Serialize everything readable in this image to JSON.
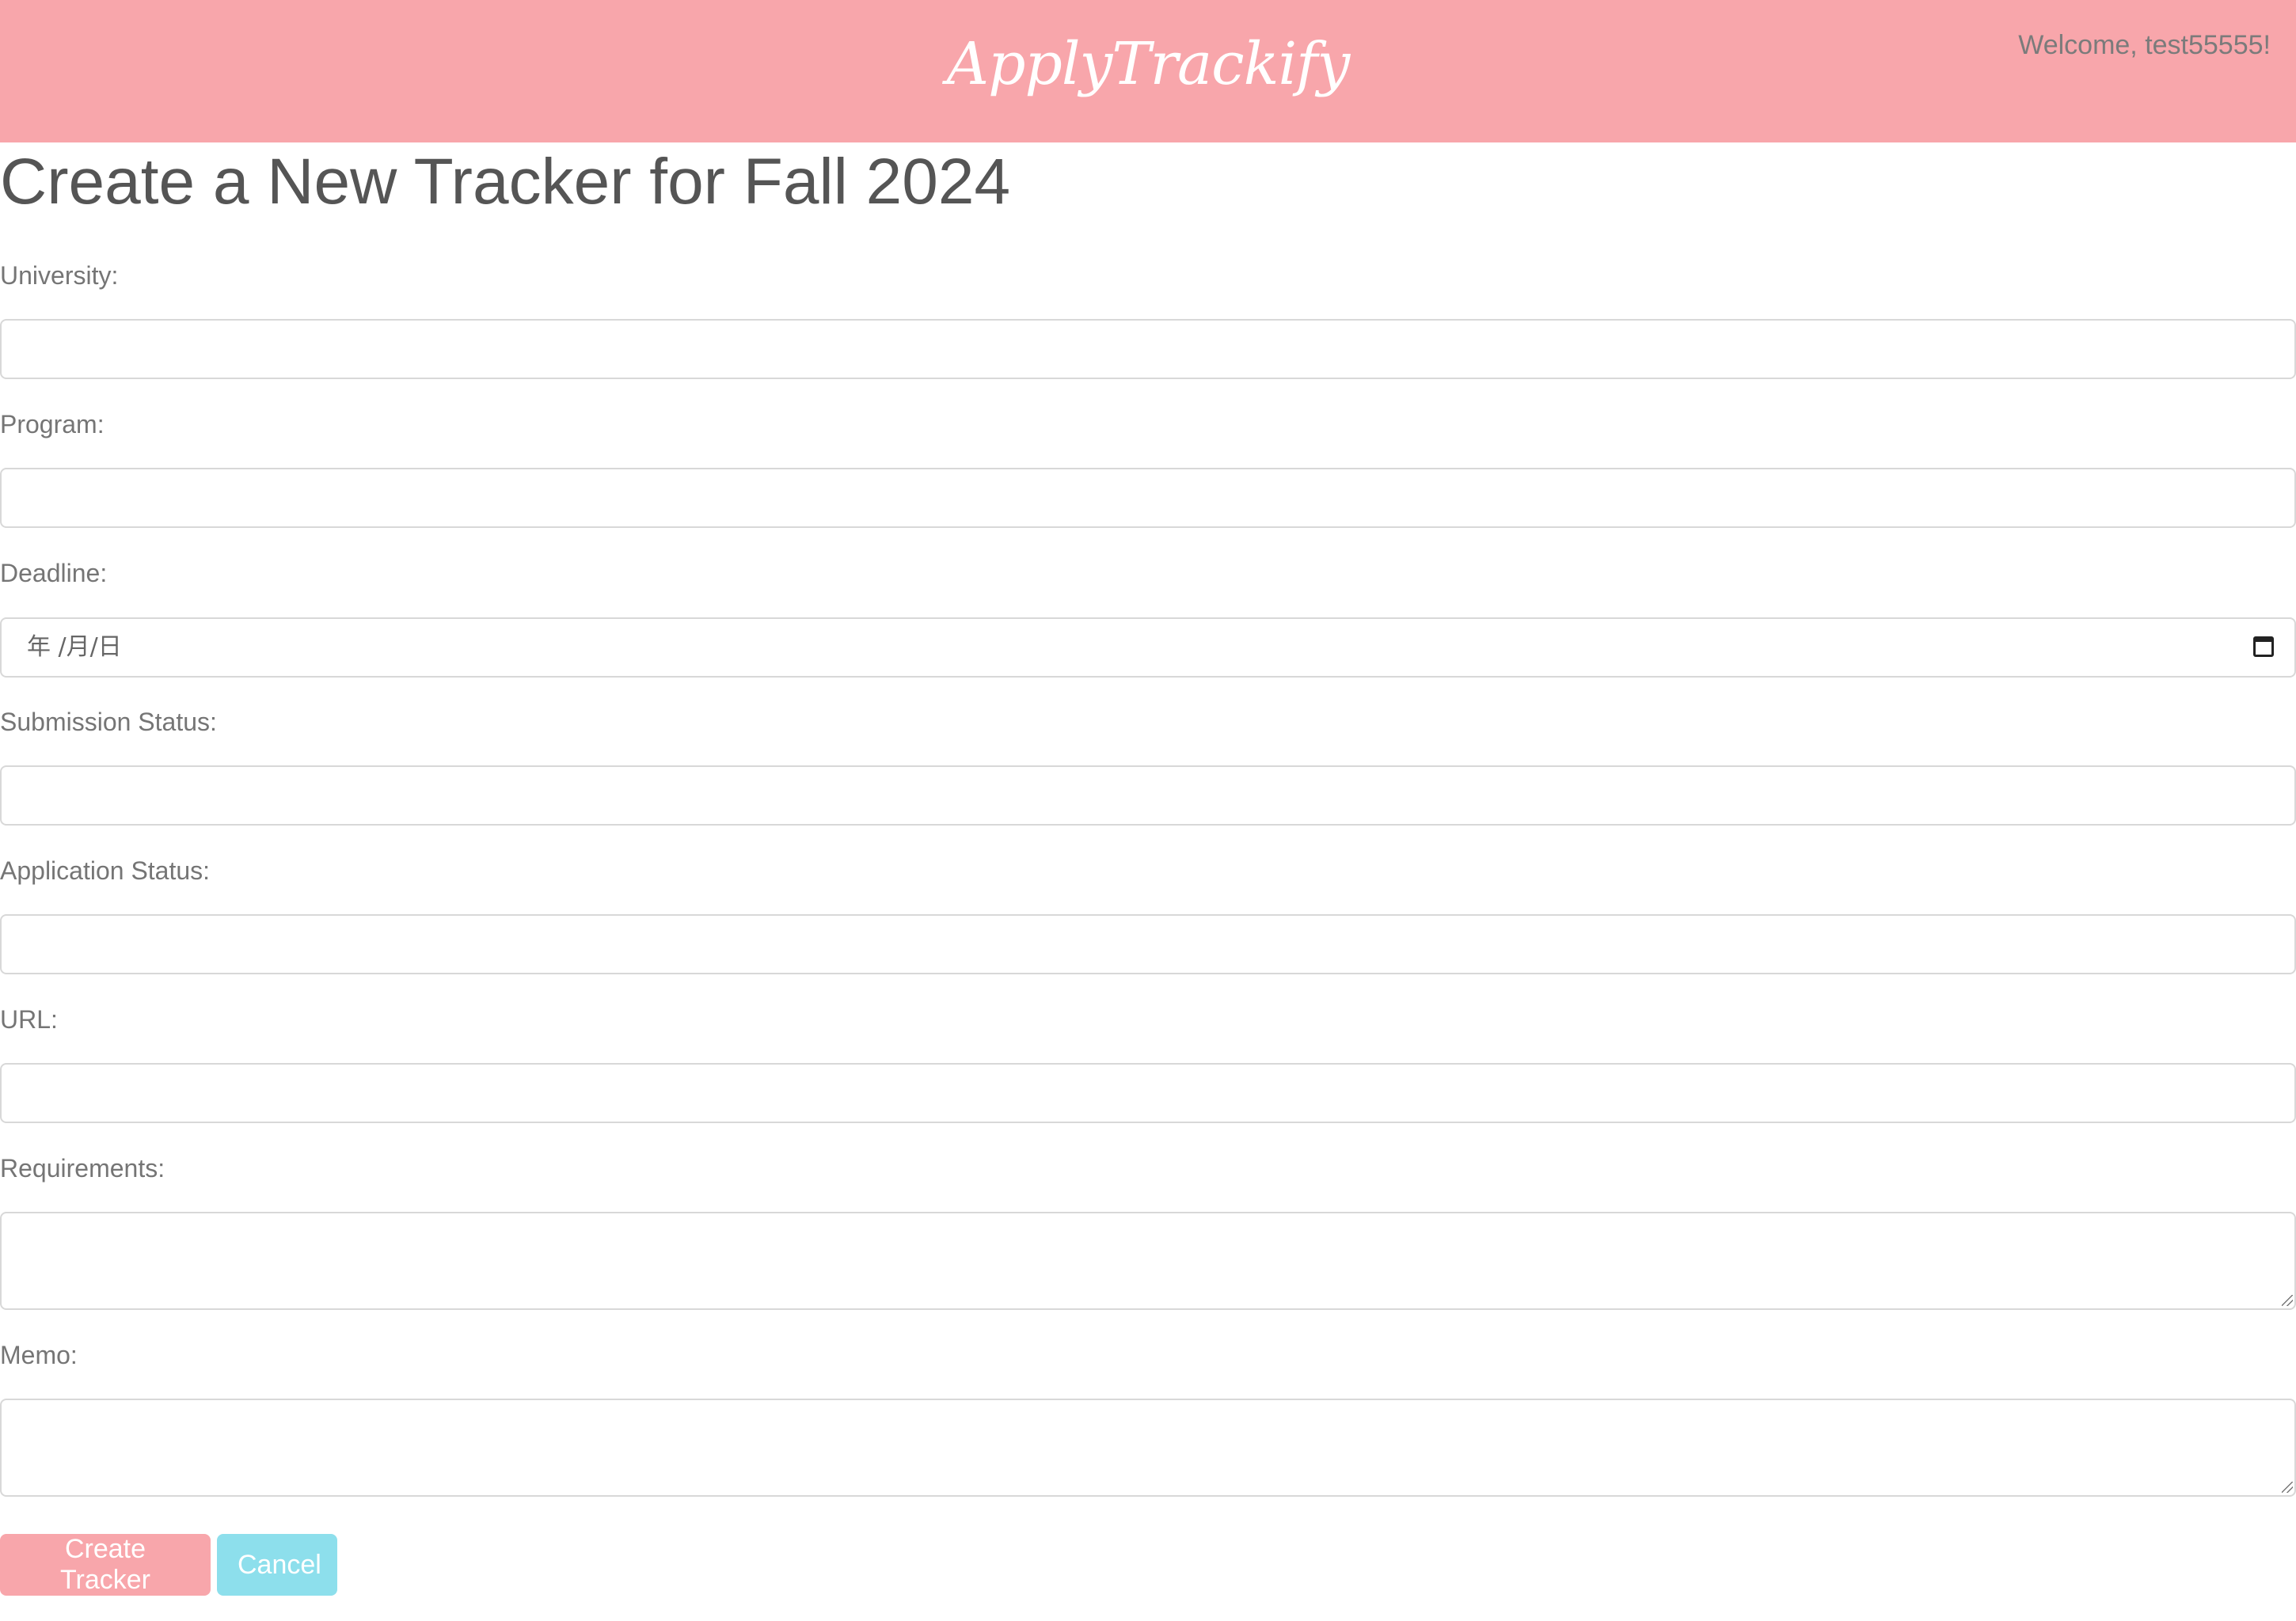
{
  "header": {
    "logo": "ApplyTrackify",
    "welcome": "Welcome, test55555!"
  },
  "page": {
    "title": "Create a New Tracker for Fall 2024"
  },
  "form": {
    "university_label": "University:",
    "university_value": "",
    "program_label": "Program:",
    "program_value": "",
    "deadline_label": "Deadline:",
    "deadline_placeholder": "年 /月/日",
    "submission_status_label": "Submission Status:",
    "submission_status_value": "",
    "application_status_label": "Application Status:",
    "application_status_value": "",
    "url_label": "URL:",
    "url_value": "",
    "requirements_label": "Requirements:",
    "requirements_value": "",
    "memo_label": "Memo:",
    "memo_value": ""
  },
  "buttons": {
    "create": "Create Tracker",
    "cancel": "Cancel"
  },
  "colors": {
    "header_bg": "#f8a6ab",
    "primary": "#f8a6ab",
    "secondary": "#8ddfec"
  },
  "icons": {
    "deadline_picker": "calendar-icon",
    "textarea_resize": "resize-grip-icon"
  }
}
